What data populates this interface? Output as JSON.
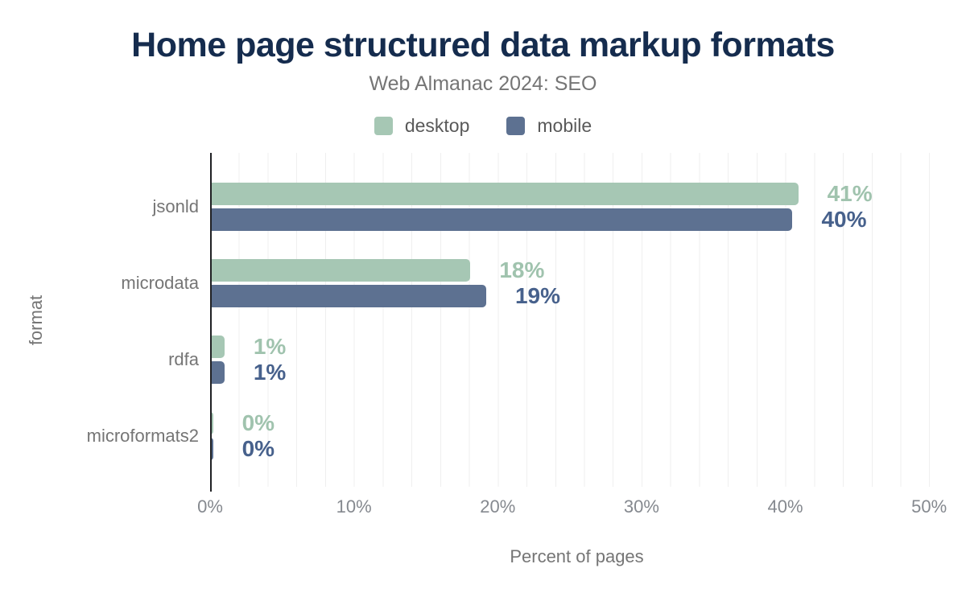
{
  "title": "Home page structured data markup formats",
  "subtitle": "Web Almanac 2024: SEO",
  "legend": [
    {
      "label": "desktop",
      "color": "#a6c7b4"
    },
    {
      "label": "mobile",
      "color": "#5d7191"
    }
  ],
  "chart_data": {
    "type": "bar",
    "orientation": "horizontal",
    "title": "Home page structured data markup formats",
    "subtitle": "Web Almanac 2024: SEO",
    "categories": [
      "jsonld",
      "microdata",
      "rdfa",
      "microformats2"
    ],
    "series": [
      {
        "name": "desktop",
        "color": "#a6c7b4",
        "label_color": "#a0c3ae",
        "values": [
          41,
          18,
          1,
          0
        ],
        "bar_pct": [
          40.9,
          18.1,
          1.0,
          0.2
        ]
      },
      {
        "name": "mobile",
        "color": "#5d7191",
        "label_color": "#47618c",
        "values": [
          40,
          19,
          1,
          0
        ],
        "bar_pct": [
          40.5,
          19.2,
          1.0,
          0.2
        ]
      }
    ],
    "value_suffix": "%",
    "xlabel": "Percent of pages",
    "ylabel": "format",
    "x_ticks": [
      "0%",
      "10%",
      "20%",
      "30%",
      "40%",
      "50%"
    ],
    "xlim": [
      0,
      51
    ],
    "grid_step_pct": 2,
    "legend_position": "top",
    "grid": true
  },
  "colors": {
    "title": "#152c4e",
    "subtitle": "#757575",
    "axis_line": "#202124",
    "gridline": "#efefef",
    "tick_label": "#85898f",
    "category_label": "#757575"
  }
}
